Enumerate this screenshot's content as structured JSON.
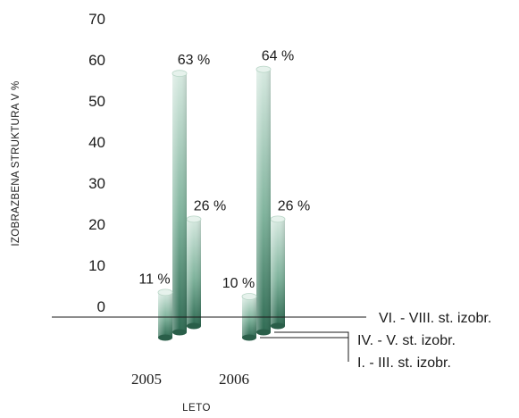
{
  "chart_data": {
    "type": "bar",
    "ylabel": "IZOBRAZBENA STRUKTURA V %",
    "xlabel": "LETO",
    "categories": [
      "2005",
      "2006"
    ],
    "yticks": [
      "70",
      "60",
      "50",
      "40",
      "30",
      "20",
      "10",
      "0"
    ],
    "ylim": [
      0,
      70
    ],
    "series": [
      {
        "name": "I. - III. st. izobr.",
        "values": [
          11,
          10
        ],
        "labels": [
          "11 %",
          "10 %"
        ]
      },
      {
        "name": "IV. - V. st. izobr.",
        "values": [
          63,
          64
        ],
        "labels": [
          "63 %",
          "64 %"
        ]
      },
      {
        "name": "VI. - VIII. st. izobr.",
        "values": [
          26,
          26
        ],
        "labels": [
          "26 %",
          "26 %"
        ]
      }
    ],
    "colors": {
      "bar_dark": "#2e6a52",
      "bar_light": "#d6e9e0"
    }
  }
}
